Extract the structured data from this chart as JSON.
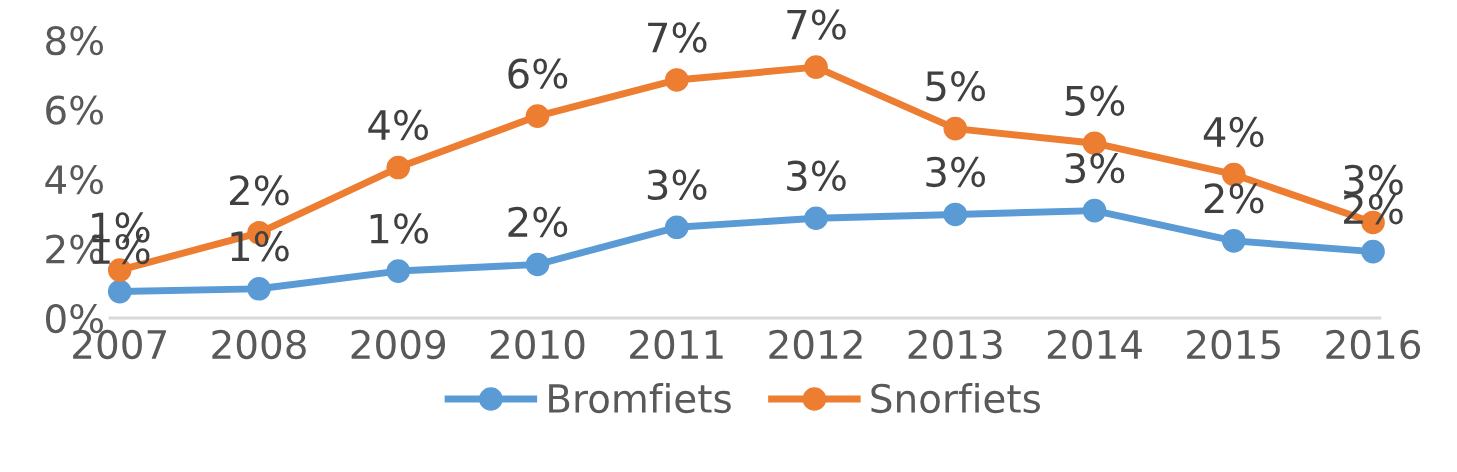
{
  "chart_data": {
    "type": "line",
    "categories": [
      "2007",
      "2008",
      "2009",
      "2010",
      "2011",
      "2012",
      "2013",
      "2014",
      "2015",
      "2016"
    ],
    "series": [
      {
        "name": "Bromfiets",
        "color": "#5b9bd5",
        "values": [
          0.76,
          0.84,
          1.35,
          1.54,
          2.61,
          2.87,
          2.98,
          3.09,
          2.22,
          1.91
        ],
        "value_labels": [
          "1%",
          "1%",
          "1%",
          "2%",
          "3%",
          "3%",
          "3%",
          "3%",
          "2%",
          "2%"
        ]
      },
      {
        "name": "Snorfiets",
        "color": "#ed7d31",
        "values": [
          1.38,
          2.45,
          4.33,
          5.81,
          6.85,
          7.22,
          5.45,
          5.03,
          4.13,
          2.75
        ],
        "value_labels": [
          "1%",
          "2%",
          "4%",
          "6%",
          "7%",
          "7%",
          "5%",
          "5%",
          "4%",
          "3%"
        ]
      }
    ],
    "ylim": [
      0,
      8
    ],
    "yticks": [
      {
        "value": 0,
        "label": "0%"
      },
      {
        "value": 2,
        "label": "2%"
      },
      {
        "value": 4,
        "label": "4%"
      },
      {
        "value": 6,
        "label": "6%"
      },
      {
        "value": 8,
        "label": "8%"
      }
    ],
    "grid": false,
    "legend": "bottom",
    "marker": "circle",
    "line_style": "solid"
  }
}
